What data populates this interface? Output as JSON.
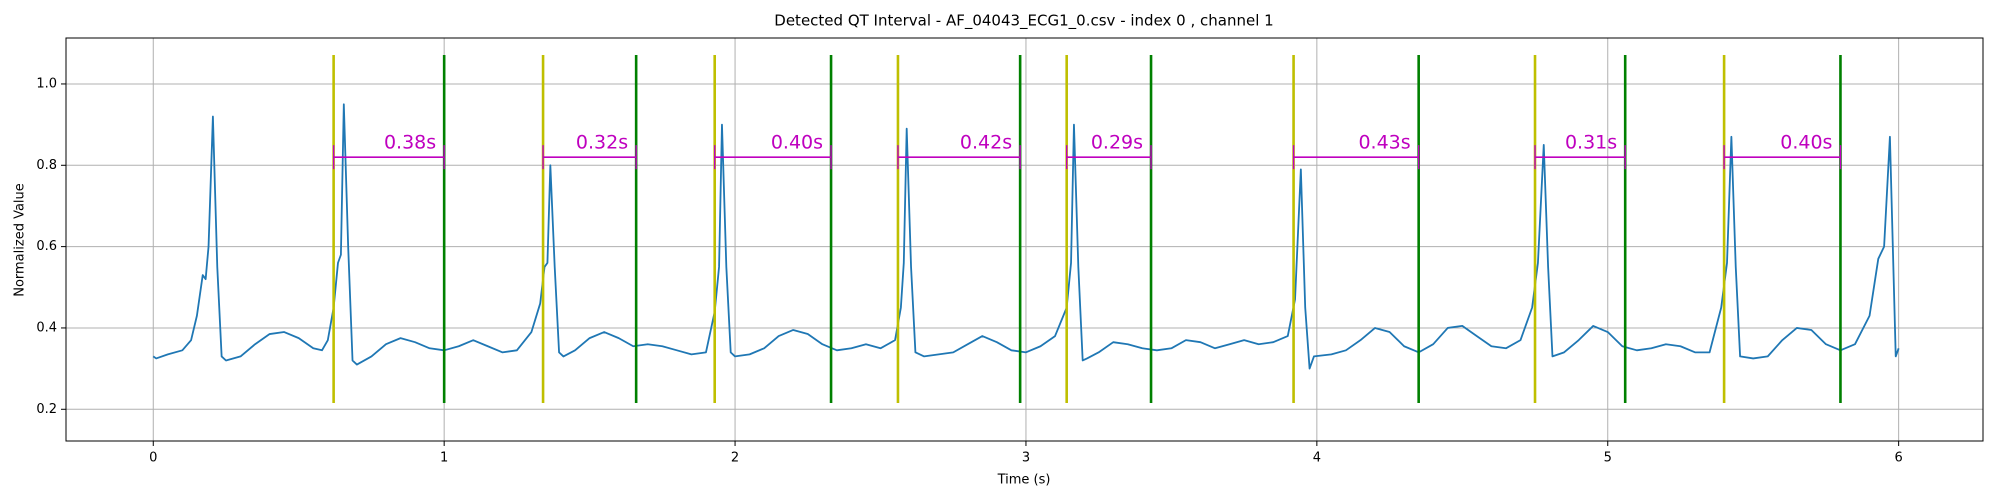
{
  "chart_data": {
    "type": "line",
    "title": "Detected QT Interval - AF_04043_ECG1_0.csv - index 0 , channel 1",
    "xlabel": "Time (s)",
    "ylabel": "Normalized Value",
    "xlim": [
      -0.3,
      6.29
    ],
    "ylim": [
      0.122,
      1.113
    ],
    "xticks": [
      0,
      1,
      2,
      3,
      4,
      5,
      6
    ],
    "yticks": [
      0.2,
      0.4,
      0.6,
      0.8,
      {
        "value": 1,
        "label": "1.0"
      }
    ],
    "grid": true,
    "series": [
      {
        "color": "#1f77b4",
        "x": [
          0.0,
          0.01,
          0.05,
          0.1,
          0.13,
          0.15,
          0.17,
          0.18,
          0.19,
          0.205,
          0.22,
          0.235,
          0.25,
          0.3,
          0.35,
          0.4,
          0.45,
          0.5,
          0.55,
          0.58,
          0.6,
          0.62,
          0.635,
          0.645,
          0.655,
          0.67,
          0.685,
          0.7,
          0.75,
          0.8,
          0.85,
          0.9,
          0.95,
          1.0,
          1.05,
          1.1,
          1.15,
          1.2,
          1.25,
          1.3,
          1.33,
          1.345,
          1.355,
          1.365,
          1.38,
          1.395,
          1.41,
          1.45,
          1.5,
          1.55,
          1.6,
          1.65,
          1.7,
          1.75,
          1.8,
          1.85,
          1.9,
          1.93,
          1.945,
          1.955,
          1.97,
          1.985,
          2.0,
          2.05,
          2.1,
          2.15,
          2.2,
          2.25,
          2.3,
          2.35,
          2.4,
          2.45,
          2.5,
          2.55,
          2.57,
          2.58,
          2.59,
          2.605,
          2.62,
          2.65,
          2.7,
          2.75,
          2.8,
          2.85,
          2.9,
          2.95,
          3.0,
          3.05,
          3.1,
          3.14,
          3.155,
          3.165,
          3.18,
          3.195,
          3.21,
          3.25,
          3.3,
          3.35,
          3.4,
          3.45,
          3.5,
          3.55,
          3.6,
          3.65,
          3.7,
          3.75,
          3.8,
          3.85,
          3.9,
          3.925,
          3.945,
          3.96,
          3.975,
          3.99,
          4.05,
          4.1,
          4.15,
          4.2,
          4.25,
          4.3,
          4.35,
          4.4,
          4.45,
          4.5,
          4.55,
          4.6,
          4.65,
          4.7,
          4.74,
          4.76,
          4.78,
          4.795,
          4.81,
          4.85,
          4.9,
          4.95,
          5.0,
          5.05,
          5.1,
          5.15,
          5.2,
          5.25,
          5.3,
          5.35,
          5.39,
          5.41,
          5.425,
          5.44,
          5.455,
          5.5,
          5.55,
          5.6,
          5.65,
          5.7,
          5.75,
          5.8,
          5.85,
          5.9,
          5.93,
          5.95,
          5.97,
          5.99,
          6.0
        ],
        "values": [
          0.33,
          0.325,
          0.335,
          0.345,
          0.37,
          0.43,
          0.53,
          0.52,
          0.6,
          0.92,
          0.55,
          0.33,
          0.32,
          0.33,
          0.36,
          0.385,
          0.39,
          0.375,
          0.35,
          0.345,
          0.37,
          0.45,
          0.56,
          0.58,
          0.95,
          0.6,
          0.32,
          0.31,
          0.33,
          0.36,
          0.375,
          0.365,
          0.35,
          0.345,
          0.355,
          0.37,
          0.355,
          0.34,
          0.345,
          0.39,
          0.46,
          0.55,
          0.56,
          0.8,
          0.55,
          0.34,
          0.33,
          0.345,
          0.375,
          0.39,
          0.375,
          0.355,
          0.36,
          0.355,
          0.345,
          0.335,
          0.34,
          0.44,
          0.55,
          0.9,
          0.55,
          0.34,
          0.33,
          0.335,
          0.35,
          0.38,
          0.395,
          0.385,
          0.36,
          0.345,
          0.35,
          0.36,
          0.35,
          0.37,
          0.45,
          0.56,
          0.89,
          0.55,
          0.34,
          0.33,
          0.335,
          0.34,
          0.36,
          0.38,
          0.365,
          0.345,
          0.34,
          0.355,
          0.38,
          0.45,
          0.56,
          0.9,
          0.55,
          0.32,
          0.325,
          0.34,
          0.365,
          0.36,
          0.35,
          0.345,
          0.35,
          0.37,
          0.365,
          0.35,
          0.36,
          0.37,
          0.36,
          0.365,
          0.38,
          0.47,
          0.79,
          0.45,
          0.3,
          0.33,
          0.335,
          0.345,
          0.37,
          0.4,
          0.39,
          0.355,
          0.34,
          0.36,
          0.4,
          0.405,
          0.38,
          0.355,
          0.35,
          0.37,
          0.45,
          0.56,
          0.85,
          0.55,
          0.33,
          0.34,
          0.37,
          0.405,
          0.39,
          0.355,
          0.345,
          0.35,
          0.36,
          0.355,
          0.34,
          0.34,
          0.45,
          0.56,
          0.87,
          0.55,
          0.33,
          0.325,
          0.33,
          0.37,
          0.4,
          0.395,
          0.36,
          0.345,
          0.36,
          0.43,
          0.57,
          0.6,
          0.87,
          0.33,
          0.35
        ]
      }
    ],
    "q_onsets": {
      "color": "#bfbf00",
      "x": [
        0.62,
        1.34,
        1.93,
        2.56,
        3.14,
        3.92,
        4.75,
        5.4
      ]
    },
    "t_ends": {
      "color": "#008000",
      "x": [
        1.0,
        1.66,
        2.33,
        2.98,
        3.43,
        4.35,
        5.06,
        5.8
      ]
    },
    "qt_intervals": {
      "color": "#bf00bf",
      "y": 0.82,
      "values": [
        0.38,
        0.32,
        0.4,
        0.42,
        0.29,
        0.43,
        0.31,
        0.4
      ],
      "value_labels": [
        "0.38s",
        "0.32s",
        "0.40s",
        "0.42s",
        "0.29s",
        "0.43s",
        "0.31s",
        "0.40s"
      ]
    }
  }
}
